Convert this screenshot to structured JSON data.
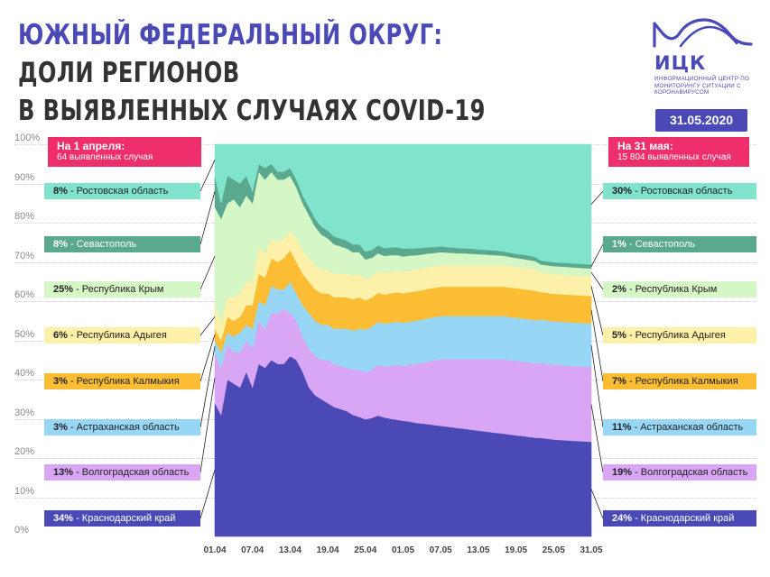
{
  "header": {
    "title_part1": "Южный федеральный округ:",
    "title_part2": "доли регионов",
    "title_line2": "в выявленных случаях COVID-19"
  },
  "logo": {
    "abbr": "ИЦК",
    "subtitle": "Информационный центр по мониторингу ситуации с коронавирусом"
  },
  "date_badge": "31.05.2020",
  "colors": {
    "accent": "#4a49b5",
    "period_box": "#ef2f6c",
    "regions": [
      "#4a49b5",
      "#d9a6f6",
      "#97d7f5",
      "#fbbd33",
      "#fdf0a9",
      "#d5f6c5",
      "#5aa98f",
      "#80e4cd"
    ]
  },
  "start_box": {
    "head": "На 1 апреля:",
    "sub": "64 выявленных случая"
  },
  "end_box": {
    "head": "На 31 мая:",
    "sub": "15 804 выявленных случая"
  },
  "chart_data": {
    "type": "area",
    "stacked": true,
    "normalized": true,
    "x": [
      "01.04",
      "02.04",
      "03.04",
      "04.04",
      "05.04",
      "06.04",
      "07.04",
      "08.04",
      "09.04",
      "10.04",
      "11.04",
      "12.04",
      "13.04",
      "14.04",
      "15.04",
      "16.04",
      "17.04",
      "18.04",
      "19.04",
      "20.04",
      "21.04",
      "22.04",
      "23.04",
      "24.04",
      "25.04",
      "26.04",
      "27.04",
      "28.04",
      "29.04",
      "30.04",
      "01.05",
      "02.05",
      "03.05",
      "04.05",
      "05.05",
      "06.05",
      "07.05",
      "08.05",
      "09.05",
      "10.05",
      "11.05",
      "12.05",
      "13.05",
      "14.05",
      "15.05",
      "16.05",
      "17.05",
      "18.05",
      "19.05",
      "20.05",
      "21.05",
      "22.05",
      "23.05",
      "24.05",
      "25.05",
      "26.05",
      "27.05",
      "28.05",
      "29.05",
      "30.05",
      "31.05"
    ],
    "xtick_labels": [
      "01.04",
      "07.04",
      "13.04",
      "19.04",
      "25.04",
      "01.05",
      "07.05",
      "13.05",
      "19.05",
      "25.05",
      "31.05"
    ],
    "ytick_labels": [
      "0%",
      "10%",
      "20%",
      "30%",
      "40%",
      "50%",
      "60%",
      "70%",
      "80%",
      "90%",
      "100%"
    ],
    "ylim": [
      0,
      100
    ],
    "series": [
      {
        "name": "Краснодарский край",
        "start_label": "34%",
        "end_label": "24%",
        "values": [
          34,
          31,
          40,
          39,
          38,
          42,
          38,
          44,
          43,
          45,
          44,
          44,
          46,
          45,
          42,
          38,
          36,
          35,
          34,
          33,
          32.5,
          32,
          31,
          30.5,
          30,
          30.5,
          31,
          30.5,
          30,
          29.8,
          29.5,
          29.3,
          29,
          28.8,
          28.6,
          28.4,
          28.2,
          28,
          27.8,
          27.6,
          27.4,
          27.2,
          27,
          26.8,
          26.6,
          26.4,
          26.2,
          26,
          25.8,
          25.6,
          25.4,
          25.2,
          25,
          24.8,
          24.6,
          24.5,
          24.4,
          24.3,
          24.2,
          24.1,
          24
        ]
      },
      {
        "name": "Волгоградская область",
        "start_label": "13%",
        "end_label": "19%",
        "values": [
          13,
          12,
          9,
          8,
          9,
          8,
          10,
          11,
          10,
          12,
          13,
          14,
          11,
          10,
          9,
          10,
          10,
          10,
          11,
          11,
          11,
          11,
          11.5,
          12,
          12,
          12.5,
          13,
          13,
          13.5,
          14,
          14,
          14.5,
          15,
          15.5,
          16,
          16.5,
          17,
          17.2,
          17.4,
          17.6,
          17.8,
          18,
          18.2,
          18.4,
          18.6,
          18.8,
          19,
          19,
          19,
          19,
          19,
          19,
          19,
          19,
          19,
          19,
          19,
          19,
          19,
          19,
          19
        ]
      },
      {
        "name": "Астраханская область",
        "start_label": "3%",
        "end_label": "11%",
        "values": [
          3,
          4,
          3,
          4,
          5,
          4,
          5,
          5,
          6,
          7,
          6,
          5,
          8,
          7,
          8,
          9,
          9,
          9,
          9,
          9,
          9.5,
          10,
          10,
          10.5,
          11,
          11,
          11,
          11,
          11,
          11,
          11,
          11,
          11,
          11,
          11,
          11,
          11,
          11,
          11,
          11,
          11,
          11,
          11,
          11,
          11,
          11,
          11,
          11,
          11,
          11,
          11,
          11,
          11,
          11,
          11,
          11,
          11,
          11,
          11,
          11,
          11
        ]
      },
      {
        "name": "Республика Калмыкия",
        "start_label": "3%",
        "end_label": "7%",
        "values": [
          3,
          3,
          4,
          4,
          4,
          5,
          6,
          7,
          7,
          7,
          7,
          8,
          8,
          8,
          8,
          8,
          8,
          8,
          8,
          8,
          8,
          8,
          8,
          8,
          7.5,
          7.5,
          7.5,
          7.5,
          7.5,
          7.5,
          7.5,
          7.5,
          7.5,
          7.5,
          7.5,
          7.5,
          7.5,
          7.5,
          7.5,
          7.5,
          7.5,
          7.5,
          7.5,
          7.5,
          7.5,
          7.5,
          7.5,
          7.5,
          7.5,
          7.5,
          7.5,
          7.5,
          7,
          7,
          7,
          7,
          7,
          7,
          7,
          7,
          7
        ]
      },
      {
        "name": "Республика Адыгея",
        "start_label": "6%",
        "end_label": "5%",
        "values": [
          6,
          5,
          5,
          6,
          6,
          6,
          6,
          7,
          6,
          5,
          5,
          5,
          5,
          6,
          6,
          6,
          6,
          6,
          6,
          6,
          6,
          6,
          6,
          6,
          5.5,
          5.5,
          5.5,
          5.5,
          5.5,
          5.5,
          5.5,
          5.5,
          5.5,
          5.5,
          5.5,
          5.5,
          5.5,
          5.5,
          5.5,
          5.5,
          5.5,
          5.5,
          5.5,
          5.5,
          5.5,
          5.5,
          5.5,
          5.5,
          5.5,
          5.5,
          5.5,
          5.5,
          5,
          5,
          5,
          5,
          5,
          5,
          5,
          5,
          5
        ]
      },
      {
        "name": "Республика Крым",
        "start_label": "25%",
        "end_label": "2%",
        "values": [
          25,
          26,
          24,
          25,
          22,
          22,
          20,
          19,
          19,
          17,
          16,
          15,
          14,
          13,
          12,
          11,
          10,
          9,
          8,
          7.5,
          7,
          6.5,
          6,
          5.5,
          5,
          4.8,
          4.6,
          4.4,
          4.2,
          4,
          3.9,
          3.8,
          3.7,
          3.6,
          3.5,
          3.4,
          3.3,
          3.2,
          3.1,
          3,
          3,
          2.9,
          2.8,
          2.7,
          2.6,
          2.5,
          2.4,
          2.3,
          2.2,
          2.2,
          2.1,
          2.1,
          2,
          2,
          2,
          2,
          2,
          2,
          2,
          2,
          2
        ]
      },
      {
        "name": "Севастополь",
        "start_label": "8%",
        "end_label": "1%",
        "values": [
          8,
          4,
          7,
          5,
          6,
          5,
          3,
          2,
          3,
          2,
          2,
          2,
          2,
          2,
          2,
          2,
          2,
          2,
          2,
          2,
          2,
          2,
          2,
          2,
          2,
          2,
          2,
          2,
          2,
          2,
          2,
          1.9,
          1.8,
          1.7,
          1.6,
          1.5,
          1.5,
          1.4,
          1.4,
          1.3,
          1.3,
          1.3,
          1.2,
          1.2,
          1.2,
          1.2,
          1.1,
          1.1,
          1.1,
          1.1,
          1.1,
          1,
          1,
          1,
          1,
          1,
          1,
          1,
          1,
          1,
          1
        ]
      },
      {
        "name": "Ростовская область",
        "start_label": "8%",
        "end_label": "30%",
        "values": [
          8,
          15,
          8,
          9,
          10,
          8,
          12,
          5,
          6,
          5,
          7,
          7,
          6,
          9,
          13,
          16,
          19,
          21,
          22,
          23.5,
          24,
          24.5,
          25.5,
          25.5,
          27.5,
          27.2,
          25.9,
          26.6,
          26.3,
          26.2,
          26.6,
          26.5,
          26.5,
          26.4,
          26.2,
          26.2,
          26,
          26.2,
          26.3,
          26.5,
          26.5,
          26.6,
          26.8,
          26.9,
          27,
          27.1,
          27.3,
          27.6,
          27.9,
          28.1,
          28.4,
          28.7,
          29.5,
          29.7,
          29.9,
          30,
          30.1,
          30.2,
          30.3,
          30.4,
          30.5
        ]
      }
    ]
  }
}
